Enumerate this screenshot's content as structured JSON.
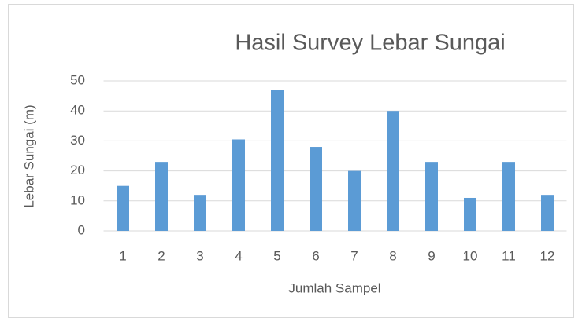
{
  "chart_data": {
    "type": "bar",
    "title": "Hasil Survey Lebar Sungai",
    "x_label": "Jumlah Sampel",
    "y_label": "Lebar Sungai (m)",
    "categories": [
      "1",
      "2",
      "3",
      "4",
      "5",
      "6",
      "7",
      "8",
      "9",
      "10",
      "11",
      "12"
    ],
    "values": [
      15,
      23,
      12,
      30.5,
      47,
      28,
      20,
      40,
      23,
      11,
      23,
      12
    ],
    "color": "#5b9bd5",
    "ylim": [
      0,
      50
    ],
    "yticks": [
      0,
      10,
      20,
      30,
      40,
      50
    ],
    "grid": true
  }
}
